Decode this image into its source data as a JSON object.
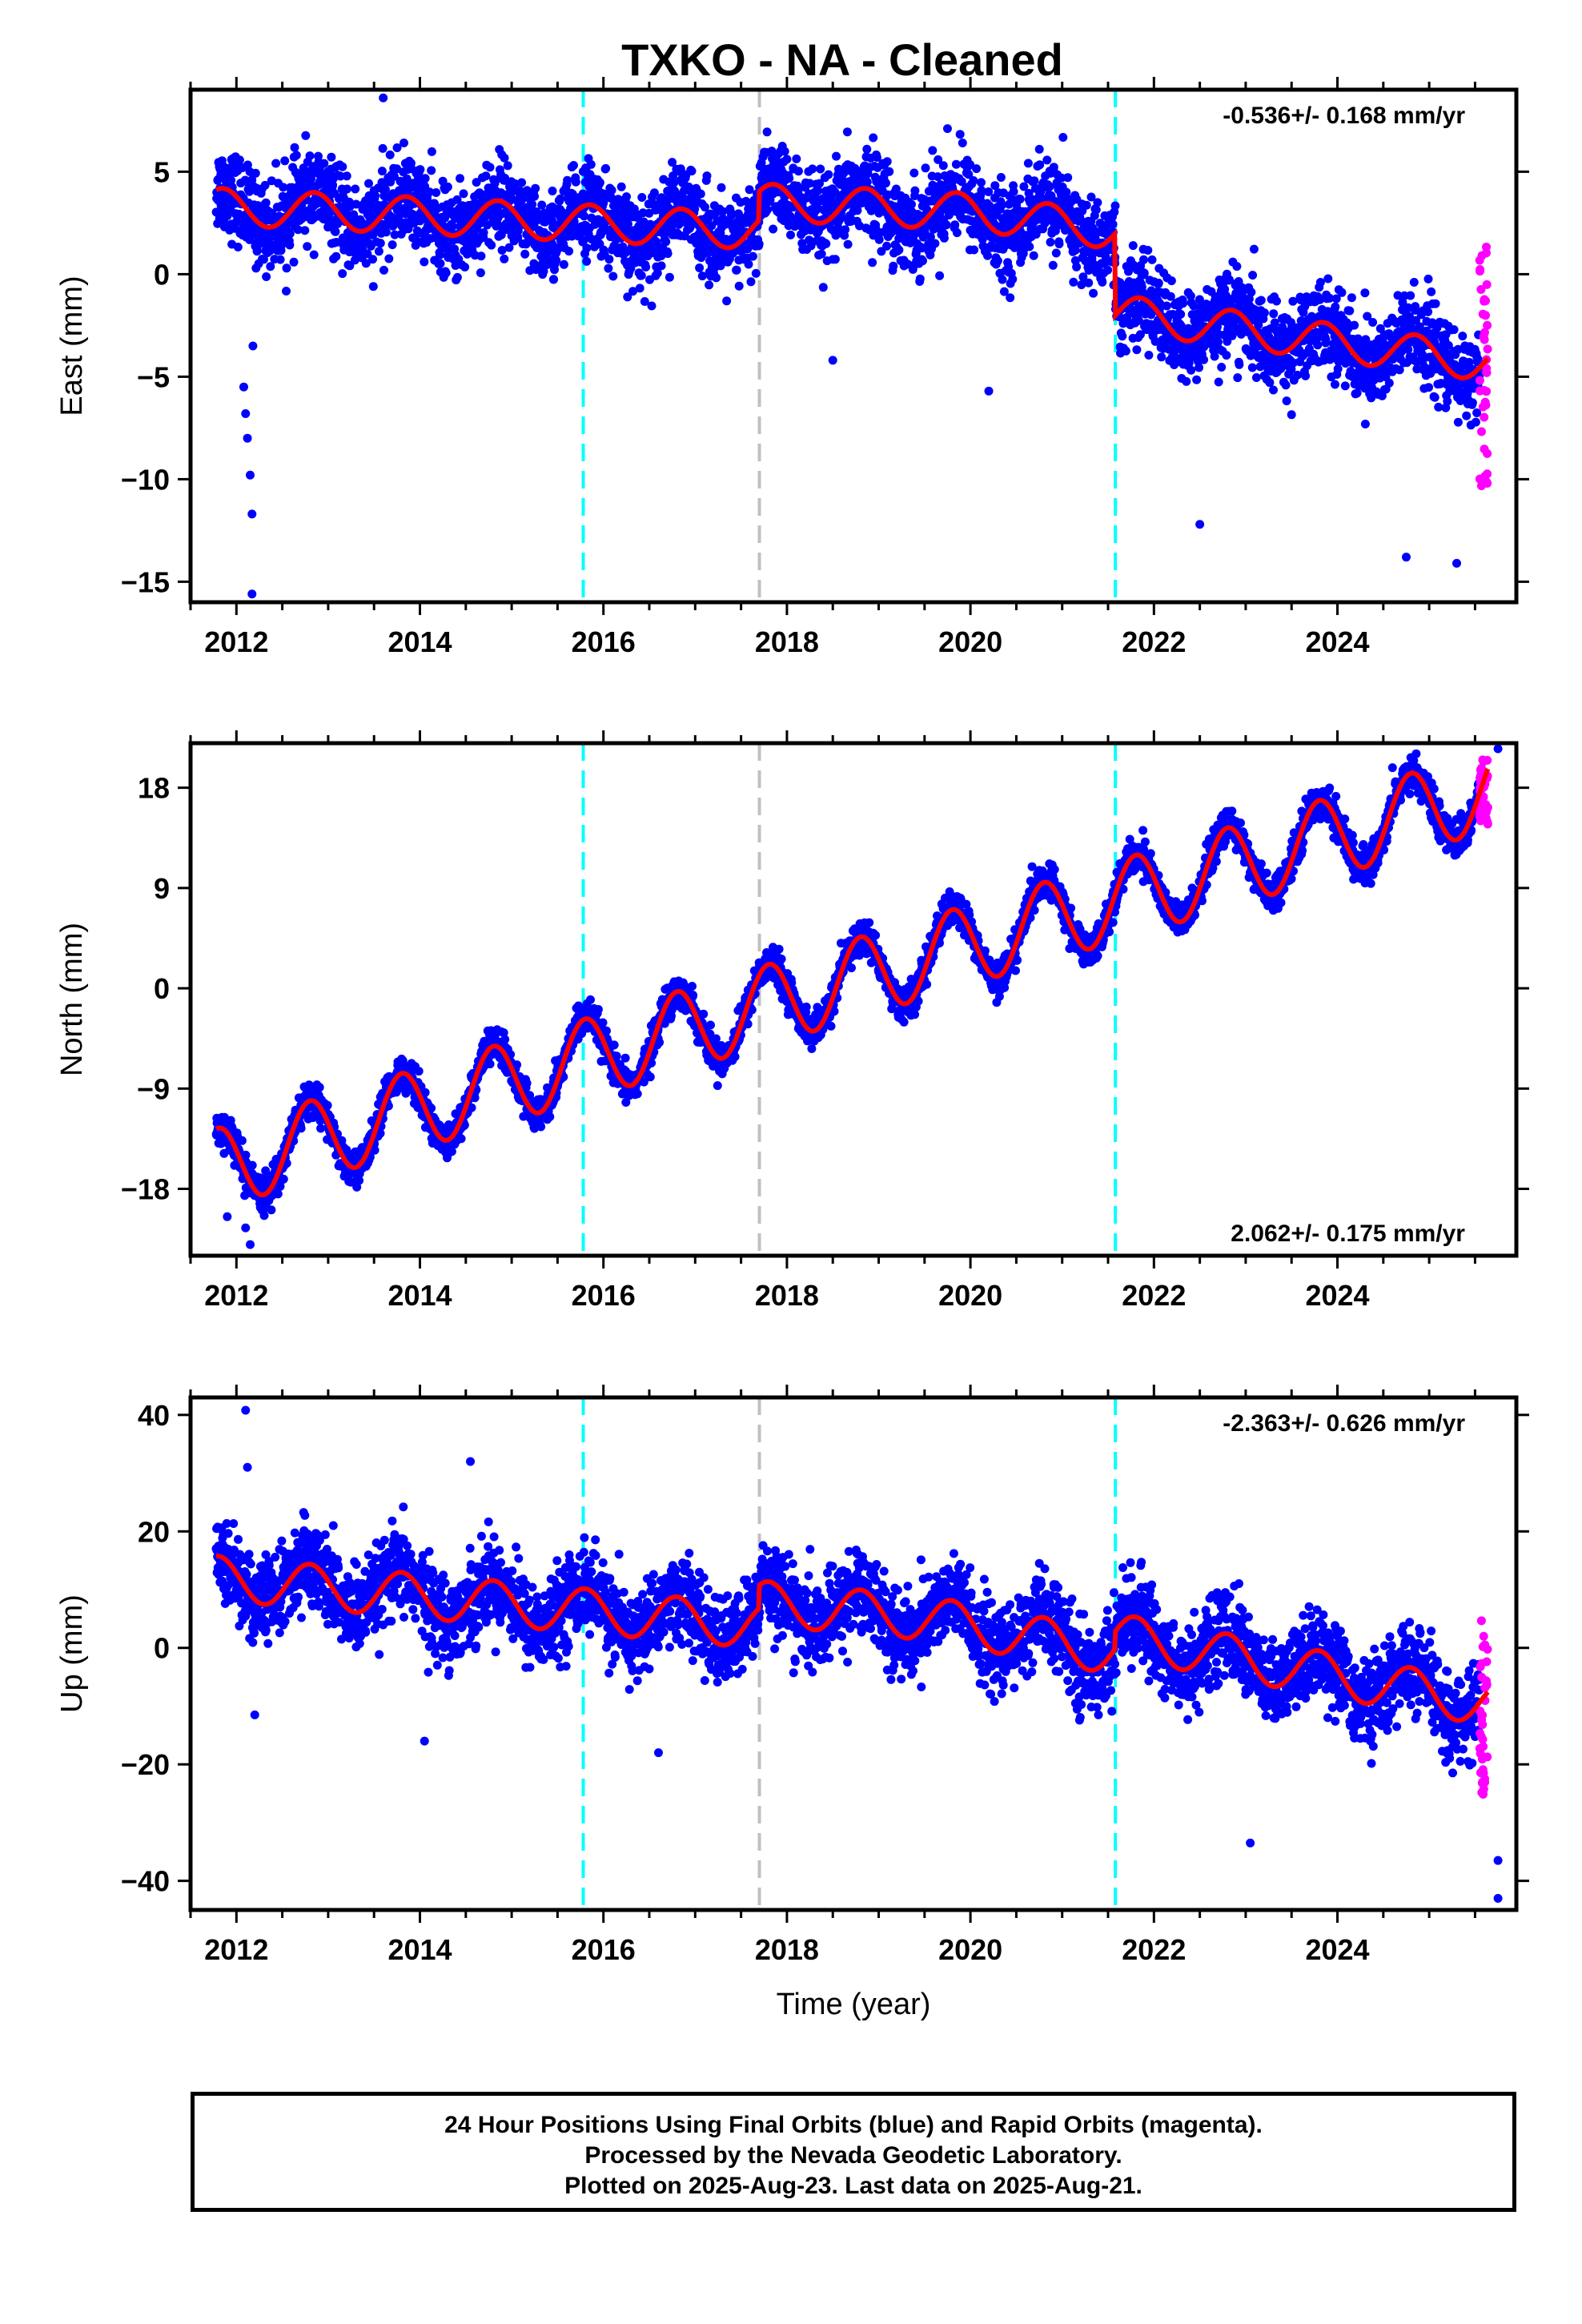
{
  "title": "TXKO  - NA - Cleaned",
  "footer": {
    "line1": "24 Hour Positions Using Final Orbits (blue) and Rapid Orbits (magenta).",
    "line2": "Processed by the Nevada Geodetic Laboratory.",
    "line3": "Plotted on 2025-Aug-23. Last data on 2025-Aug-21."
  },
  "colors": {
    "final_orbits": "#0000ff",
    "rapid_orbits": "#ff00ff",
    "model_fit": "#ff0000",
    "equipment_change": "#00ffff",
    "earthquake": "#c0c0c0"
  },
  "chart_data": [
    {
      "type": "scatter",
      "ylabel": "East (mm)",
      "xlabel": "",
      "xlim": [
        2011.5,
        2025.95
      ],
      "ylim": [
        -16,
        9
      ],
      "xticks": [
        2012,
        2014,
        2016,
        2018,
        2020,
        2022,
        2024
      ],
      "yticks": [
        5,
        0,
        -5,
        -10,
        -15
      ],
      "rate": "-0.536+/- 0.168 mm/yr",
      "rate_position": "top-right",
      "vlines": [
        {
          "x": 2015.78,
          "color": "#00ffff"
        },
        {
          "x": 2017.7,
          "color": "#c0c0c0"
        },
        {
          "x": 2021.58,
          "color": "#00ffff"
        }
      ],
      "outliers": [
        [
          2012.08,
          -5.5
        ],
        [
          2012.1,
          -6.8
        ],
        [
          2012.12,
          -8.0
        ],
        [
          2012.15,
          -9.8
        ],
        [
          2012.17,
          -11.7
        ],
        [
          2012.17,
          -15.6
        ],
        [
          2012.18,
          -3.5
        ],
        [
          2013.6,
          8.6
        ],
        [
          2019.75,
          7.1
        ],
        [
          2020.2,
          -5.7
        ],
        [
          2024.75,
          -13.8
        ],
        [
          2025.3,
          -14.1
        ],
        [
          2022.5,
          -12.2
        ],
        [
          2018.5,
          -4.2
        ]
      ],
      "series": [
        {
          "name": "Final Orbits",
          "color": "#0000ff",
          "x_start": 2011.78,
          "x_end": 2025.55,
          "offset": 3.3,
          "trend": -0.2,
          "amplitude": 0.9,
          "phase": 0.6,
          "steps": [
            [
              2017.7,
              1.4
            ],
            [
              2021.58,
              -4.0
            ]
          ],
          "decline_after": 2020.0,
          "decline_rate": -0.4,
          "noise": 1.4
        },
        {
          "name": "Rapid Orbits",
          "color": "#ff00ff",
          "x_start": 2025.55,
          "x_end": 2025.64,
          "y_min": -10.5,
          "y_max": 2.0
        }
      ]
    },
    {
      "type": "scatter",
      "ylabel": "North (mm)",
      "xlabel": "",
      "xlim": [
        2011.5,
        2025.95
      ],
      "ylim": [
        -24,
        22
      ],
      "xticks": [
        2012,
        2014,
        2016,
        2018,
        2020,
        2022,
        2024
      ],
      "yticks": [
        18,
        9,
        0,
        -9,
        -18
      ],
      "rate": "2.062+/- 0.175 mm/yr",
      "rate_position": "bottom-right",
      "vlines": [
        {
          "x": 2015.78,
          "color": "#00ffff"
        },
        {
          "x": 2017.7,
          "color": "#c0c0c0"
        },
        {
          "x": 2021.58,
          "color": "#00ffff"
        }
      ],
      "outliers": [
        [
          2012.1,
          -21.5
        ],
        [
          2012.15,
          -23.0
        ],
        [
          2011.9,
          -20.5
        ],
        [
          2025.75,
          21.5
        ],
        [
          2024.6,
          19.8
        ]
      ],
      "series": [
        {
          "name": "Final Orbits",
          "color": "#0000ff",
          "x_start": 2011.78,
          "x_end": 2025.55,
          "offset": -16.2,
          "trend": 2.45,
          "amplitude": 3.6,
          "phase": 0.55,
          "steps": [],
          "decline_after": 9999,
          "decline_rate": 0,
          "noise": 1.0
        },
        {
          "name": "Rapid Orbits",
          "color": "#ff00ff",
          "x_start": 2025.55,
          "x_end": 2025.64,
          "y_min": 14.5,
          "y_max": 20.5
        }
      ]
    },
    {
      "type": "scatter",
      "ylabel": "Up (mm)",
      "xlabel": "Time (year)",
      "xlim": [
        2011.5,
        2025.95
      ],
      "ylim": [
        -45,
        43
      ],
      "xticks": [
        2012,
        2014,
        2016,
        2018,
        2020,
        2022,
        2024
      ],
      "yticks": [
        40,
        20,
        0,
        -20,
        -40
      ],
      "rate": "-2.363+/- 0.626 mm/yr",
      "rate_position": "top-right",
      "vlines": [
        {
          "x": 2015.78,
          "color": "#00ffff"
        },
        {
          "x": 2017.7,
          "color": "#c0c0c0"
        },
        {
          "x": 2021.58,
          "color": "#00ffff"
        }
      ],
      "outliers": [
        [
          2012.1,
          40.8
        ],
        [
          2012.12,
          31.0
        ],
        [
          2014.55,
          32.0
        ],
        [
          2012.2,
          -11.5
        ],
        [
          2014.05,
          -16.0
        ],
        [
          2016.6,
          -18.0
        ],
        [
          2023.05,
          -33.5
        ],
        [
          2025.75,
          -43.0
        ],
        [
          2025.75,
          -36.5
        ]
      ],
      "series": [
        {
          "name": "Final Orbits",
          "color": "#0000ff",
          "x_start": 2011.78,
          "x_end": 2025.55,
          "offset": 12.0,
          "trend": -1.4,
          "amplitude": 3.8,
          "phase": 0.55,
          "steps": [
            [
              2017.7,
              4.0
            ],
            [
              2021.58,
              3.0
            ]
          ],
          "decline_after": 2019.5,
          "decline_rate": -1.5,
          "noise": 4.8
        },
        {
          "name": "Rapid Orbits",
          "color": "#ff00ff",
          "x_start": 2025.55,
          "x_end": 2025.64,
          "y_min": -26,
          "y_max": 5
        }
      ]
    }
  ]
}
